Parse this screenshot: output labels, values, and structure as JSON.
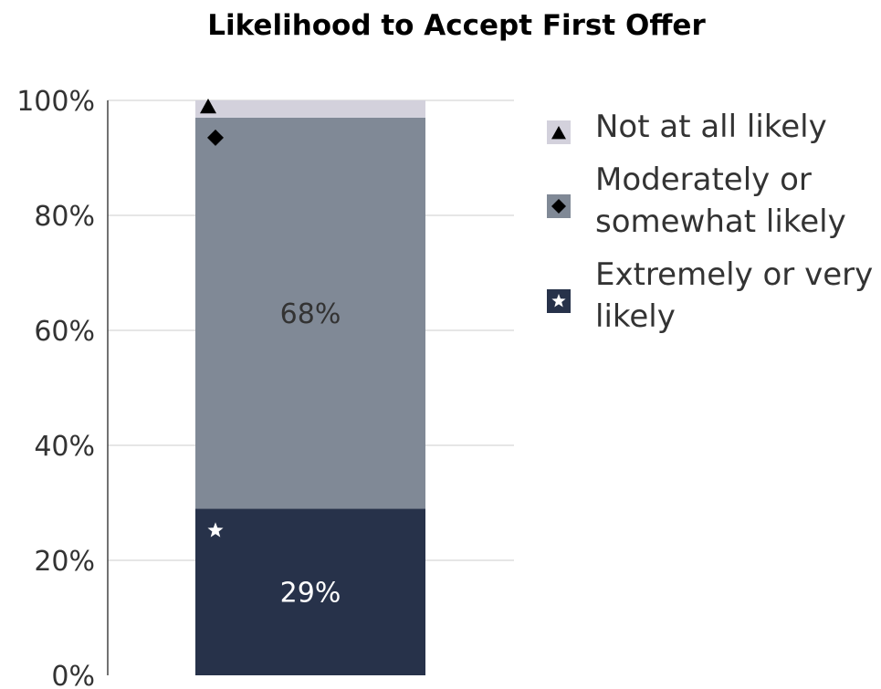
{
  "chart_data": {
    "type": "bar",
    "stacked": true,
    "title": "Likelihood to Accept First Offer",
    "categories": [
      ""
    ],
    "y_ticks": [
      "0%",
      "20%",
      "40%",
      "60%",
      "80%",
      "100%"
    ],
    "ylim": [
      0,
      100
    ],
    "grid": true,
    "legend_position": "right",
    "series": [
      {
        "name": "Extremely or very likely",
        "legend_lines": [
          "Extremely or very",
          "likely"
        ],
        "values": [
          29
        ],
        "label": "29%",
        "color": "#27324a",
        "label_color": "#ffffff",
        "marker": "star",
        "marker_color": "#ffffff"
      },
      {
        "name": "Moderately or somewhat likely",
        "legend_lines": [
          "Moderately or",
          "somewhat likely"
        ],
        "values": [
          68
        ],
        "label": "68%",
        "color": "#808996",
        "label_color": "#333333",
        "marker": "diamond",
        "marker_color": "#000000"
      },
      {
        "name": "Not at all likely",
        "legend_lines": [
          "Not at all likely"
        ],
        "values": [
          3
        ],
        "label": "",
        "color": "#d3d1dc",
        "label_color": "#333333",
        "marker": "triangle",
        "marker_color": "#000000"
      }
    ]
  }
}
